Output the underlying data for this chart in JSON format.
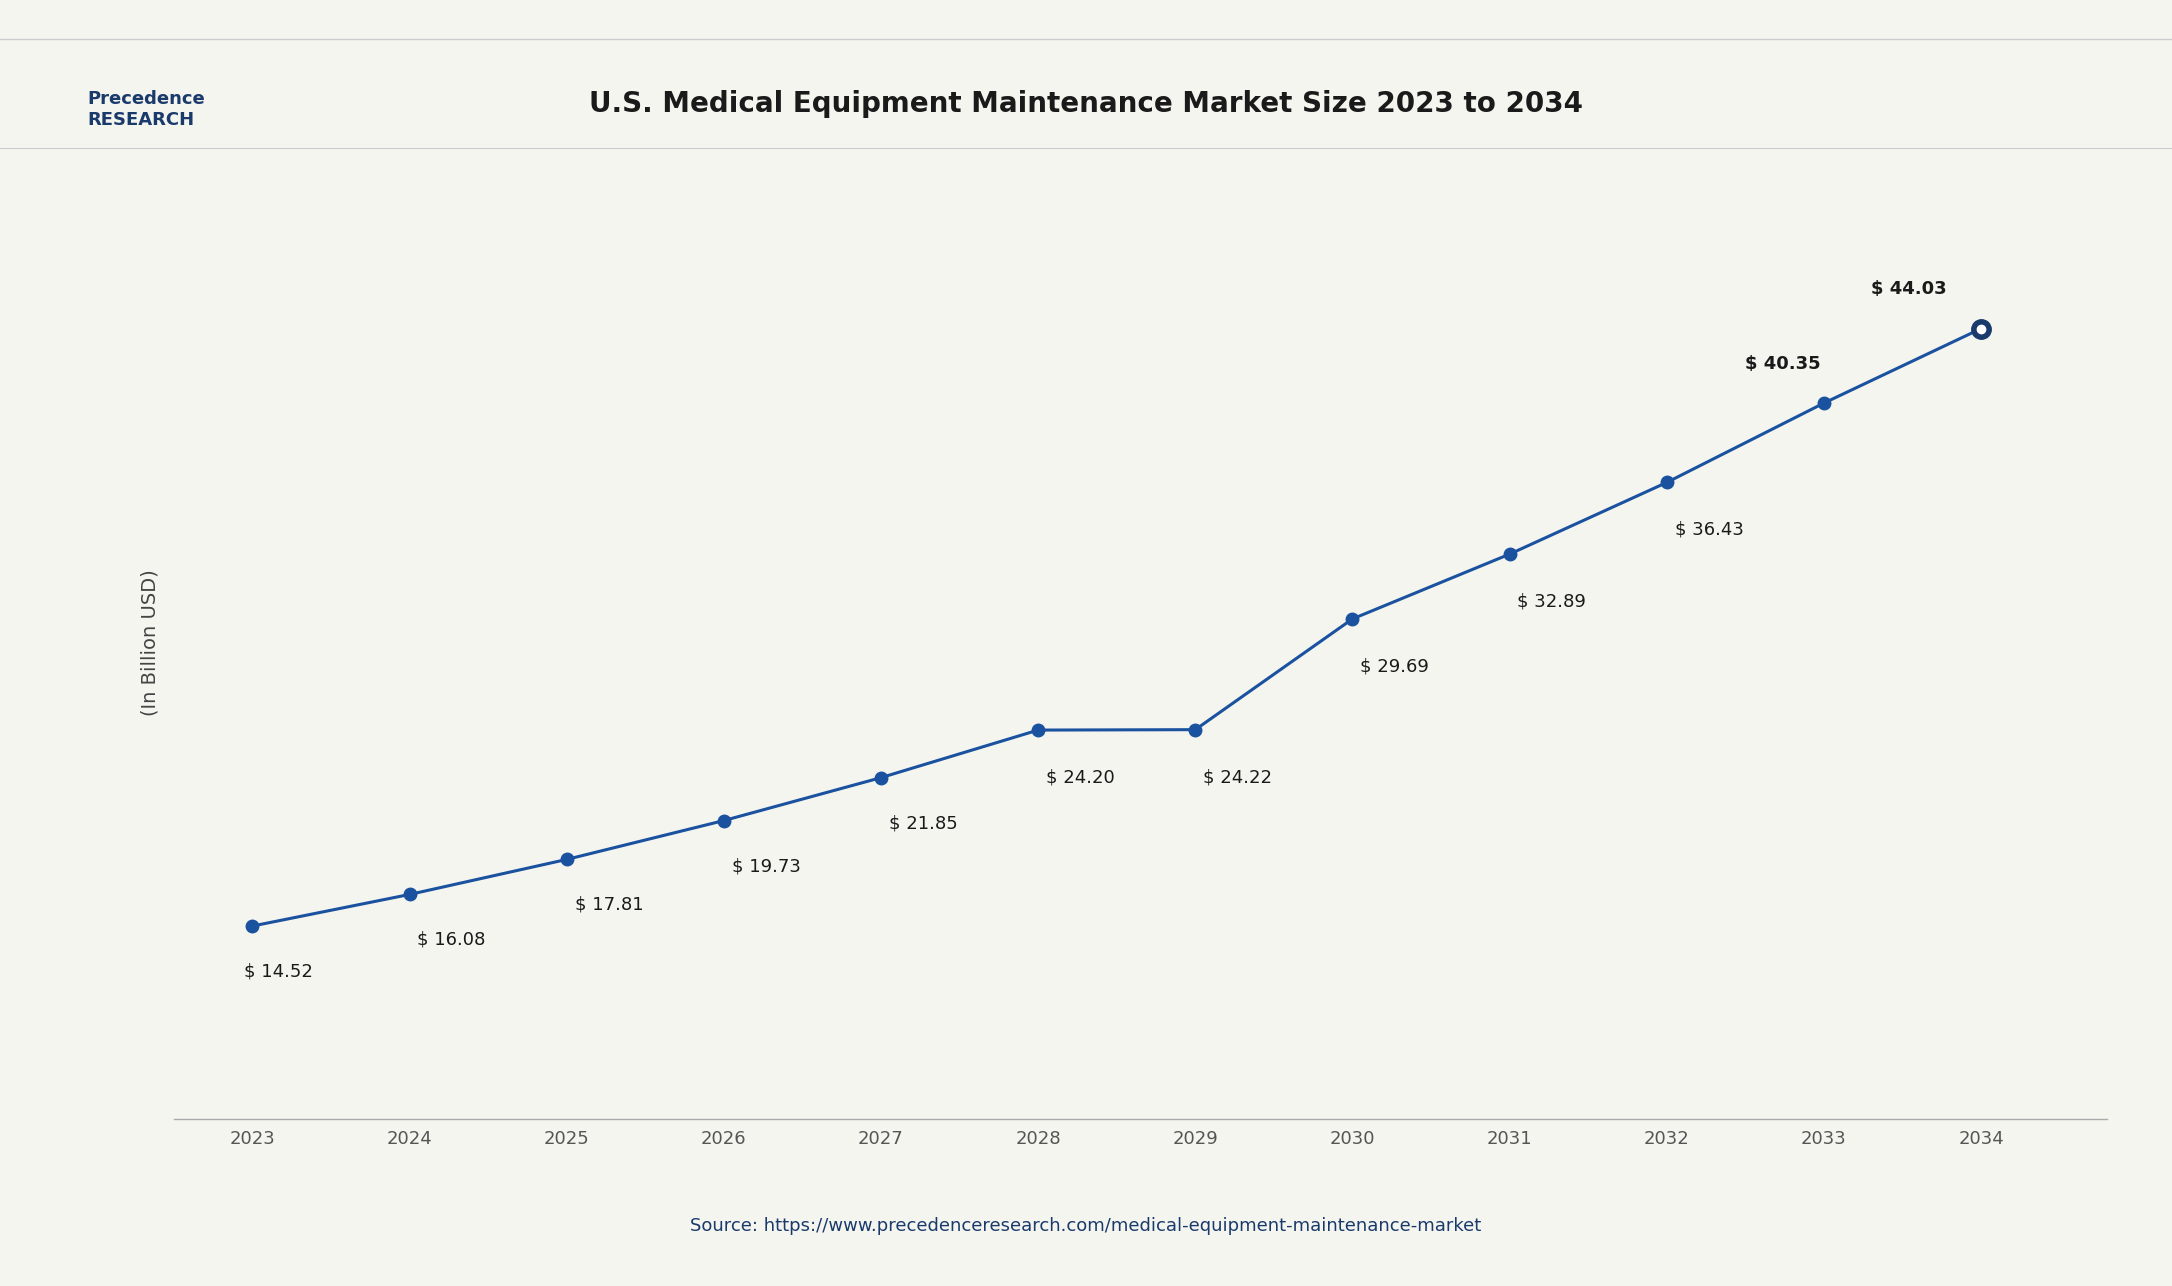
{
  "title": "U.S. Medical Equipment Maintenance Market Size 2023 to 2034",
  "years": [
    2023,
    2024,
    2025,
    2026,
    2027,
    2028,
    2029,
    2030,
    2031,
    2032,
    2033,
    2034
  ],
  "values": [
    14.52,
    16.08,
    17.81,
    19.73,
    21.85,
    24.2,
    24.22,
    29.69,
    32.89,
    36.43,
    40.35,
    44.03
  ],
  "labels": [
    "$ 14.52",
    "$ 16.08",
    "$ 17.81",
    "$ 19.73",
    "$ 21.85",
    "$ 24.20",
    "$ 24.22",
    "$ 29.69",
    "$ 32.89",
    "$ 36.43",
    "$ 40.35",
    "$ 44.03"
  ],
  "line_color": "#1a52a0",
  "marker_color": "#1a52a0",
  "last_marker_color": "#1a3a6b",
  "ylabel": "(In Billion USD)",
  "source": "Source: https://www.precedenceresearch.com/medical-equipment-maintenance-market",
  "bg_color": "#f5f5f0",
  "plot_bg_color": "#f5f5f0",
  "title_color": "#1a1a1a",
  "label_color": "#1a1a1a",
  "source_color": "#1a3a6b",
  "ylabel_color": "#444444",
  "axis_color": "#555555",
  "ylim": [
    5,
    52
  ],
  "title_fontsize": 20,
  "label_fontsize": 13,
  "source_fontsize": 13,
  "ylabel_fontsize": 14,
  "tick_fontsize": 13
}
